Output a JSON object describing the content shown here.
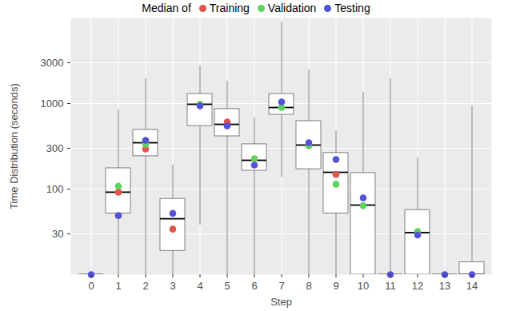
{
  "chart_data": {
    "type": "box",
    "x_label": "Step",
    "y_label": "Time Distribution (seconds)",
    "legend_title": "Median of",
    "categories": [
      "0",
      "1",
      "2",
      "3",
      "4",
      "5",
      "6",
      "7",
      "8",
      "9",
      "10",
      "11",
      "12",
      "13",
      "14"
    ],
    "boxes": {
      "whisker_low": [
        10,
        10,
        10,
        10,
        38,
        10,
        10,
        138,
        10,
        10,
        10,
        10,
        10,
        10,
        10
      ],
      "q1": [
        10,
        52,
        242,
        19,
        547,
        414,
        164,
        740,
        171,
        52,
        10,
        10,
        10,
        10,
        10
      ],
      "median": [
        10,
        92,
        348,
        45,
        980,
        571,
        217,
        898,
        327,
        157,
        65,
        10,
        31,
        10,
        10
      ],
      "q3": [
        10,
        175,
        492,
        77,
        1295,
        861,
        334,
        1295,
        623,
        264,
        154,
        10,
        57,
        10,
        14
      ],
      "whisker_high": [
        10,
        842,
        1950,
        191,
        2750,
        1830,
        679,
        9000,
        2470,
        481,
        1352,
        1950,
        231,
        10,
        937
      ]
    },
    "series": [
      {
        "name": "Training",
        "color": "#E4534B",
        "values": [
          null,
          92,
          293,
          34,
          null,
          610,
          null,
          null,
          null,
          148,
          null,
          null,
          null,
          null,
          null
        ]
      },
      {
        "name": "Validation",
        "color": "#5CD35B",
        "values": [
          null,
          108,
          334,
          null,
          980,
          null,
          226,
          898,
          320,
          114,
          64,
          null,
          32,
          null,
          null
        ]
      },
      {
        "name": "Testing",
        "color": "#5451D8",
        "values": [
          10,
          49,
          372,
          52,
          937,
          547,
          191,
          1045,
          348,
          222,
          79,
          10,
          29,
          10,
          10
        ]
      }
    ],
    "ylim": [
      10,
      10000
    ],
    "yticks": [
      30,
      100,
      300,
      1000,
      3000
    ],
    "log": "y",
    "grid": true,
    "legend": "top"
  }
}
